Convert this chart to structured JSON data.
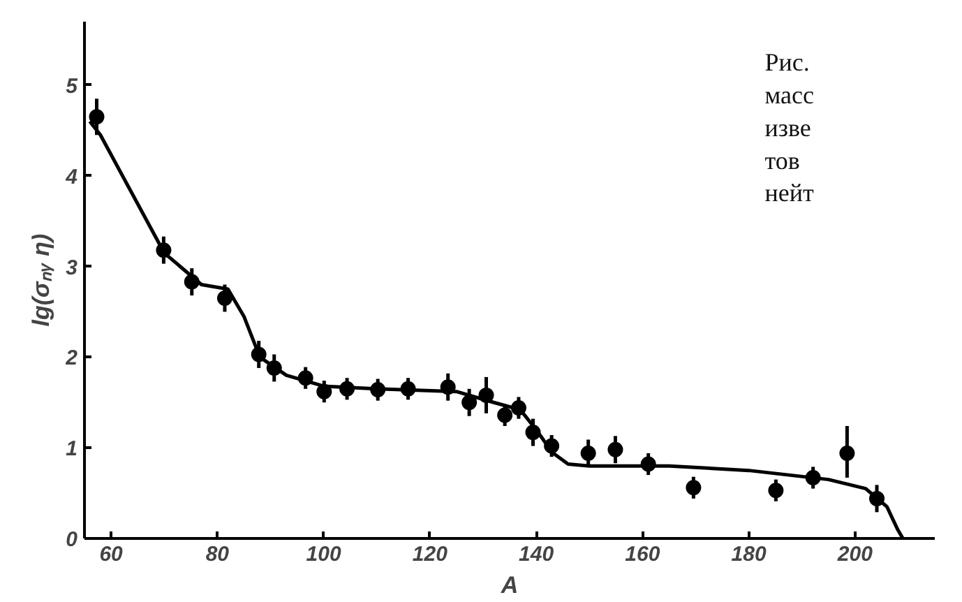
{
  "chart_data": {
    "type": "scatter",
    "xlabel": "A",
    "ylabel": "lg(σₙᵧ η)",
    "annotations": [
      "Рис.",
      "масс",
      "изве",
      "тов",
      "нейт"
    ],
    "xlim": [
      55,
      215
    ],
    "ylim": [
      0,
      5.7
    ],
    "xticks": [
      60,
      80,
      100,
      120,
      140,
      160,
      180,
      200
    ],
    "yticks": [
      0,
      1,
      2,
      3,
      4,
      5
    ],
    "grid": false,
    "marker": "circle",
    "series": [
      {
        "color": "#000000",
        "x": [
          57.3,
          69.9,
          75.2,
          81.4,
          87.8,
          90.7,
          96.6,
          100.1,
          104.4,
          110.2,
          115.9,
          123.4,
          127.4,
          130.6,
          134.1,
          136.7,
          139.4,
          142.9,
          149.8,
          154.9,
          161.1,
          169.6,
          185.1,
          192.1,
          198.5,
          204.1
        ],
        "values": [
          4.65,
          3.18,
          2.83,
          2.65,
          2.03,
          1.88,
          1.77,
          1.62,
          1.65,
          1.64,
          1.65,
          1.67,
          1.5,
          1.58,
          1.36,
          1.44,
          1.17,
          1.02,
          0.94,
          0.98,
          0.82,
          0.56,
          0.53,
          0.67,
          0.94,
          0.44
        ],
        "errors": [
          0.2,
          0.15,
          0.15,
          0.15,
          0.15,
          0.15,
          0.12,
          0.12,
          0.12,
          0.12,
          0.12,
          0.15,
          0.15,
          0.2,
          0.12,
          0.12,
          0.15,
          0.12,
          0.15,
          0.15,
          0.12,
          0.12,
          0.12,
          0.12,
          [
            0.67,
            1.24
          ],
          0.15
        ]
      },
      {
        "type": "line",
        "color": "#000000",
        "marker": "none",
        "x": [
          56,
          58,
          70,
          77,
          82,
          85,
          88,
          93,
          100,
          110,
          125,
          132,
          137,
          140,
          143,
          146,
          150,
          165,
          180,
          195,
          202,
          206,
          208,
          209
        ],
        "values": [
          4.6,
          4.45,
          3.15,
          2.8,
          2.75,
          2.45,
          2.0,
          1.8,
          1.68,
          1.65,
          1.62,
          1.5,
          1.42,
          1.2,
          0.95,
          0.82,
          0.8,
          0.8,
          0.75,
          0.65,
          0.55,
          0.35,
          0.1,
          0
        ]
      }
    ]
  }
}
